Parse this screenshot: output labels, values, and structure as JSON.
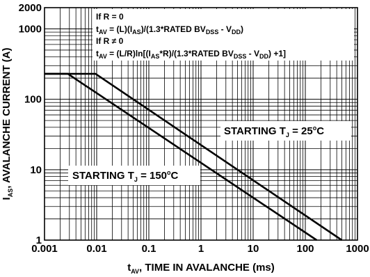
{
  "chart_data": {
    "type": "line",
    "x_scale": "log",
    "y_scale": "log",
    "xlim": [
      0.001,
      1000
    ],
    "ylim": [
      1,
      2000
    ],
    "grid": true,
    "x_ticks": [
      "0.001",
      "0.01",
      "0.1",
      "1",
      "10",
      "100",
      "1000"
    ],
    "y_ticks": [
      "1",
      "10",
      "100",
      "1000",
      "2000"
    ],
    "xlabel": {
      "main": "t",
      "sub": "AV",
      "rest": ", TIME IN AVALANCHE (ms)"
    },
    "ylabel": {
      "main": "I",
      "sub": "AS",
      "rest": ", AVALANCHE CURRENT (A)"
    },
    "annotations": {
      "line1": "If R = 0",
      "line2": {
        "a": "t",
        "a_sub": "AV",
        "b": " = (L)(I",
        "b_sub": "AS",
        "c": ")/(1.3*RATED BV",
        "c_sub": "DSS",
        "d": " - V",
        "d_sub": "DD",
        "e": ")"
      },
      "line3": "If R ≠ 0",
      "line4": {
        "a": "t",
        "a_sub": "AV",
        "b": " = (L/R)ln[(I",
        "b_sub": "AS",
        "c": "*R)/(1.3*RATED BV",
        "c_sub": "DSS",
        "d": " - V",
        "d_sub": "DD",
        "e": ") +1]"
      }
    },
    "series": [
      {
        "name": "STARTING T_J = 25°C",
        "label": {
          "main": "STARTING T",
          "sub": "J",
          "mid": " = 25",
          "sup": "o",
          "end": "C"
        },
        "x": [
          0.001,
          0.0095,
          500
        ],
        "y": [
          230,
          230,
          1
        ]
      },
      {
        "name": "STARTING T_J = 150°C",
        "label": {
          "main": "STARTING T",
          "sub": "J",
          "mid": " = 150",
          "sup": "o",
          "end": "C"
        },
        "x": [
          0.001,
          0.0028,
          165
        ],
        "y": [
          230,
          230,
          1
        ]
      }
    ]
  }
}
